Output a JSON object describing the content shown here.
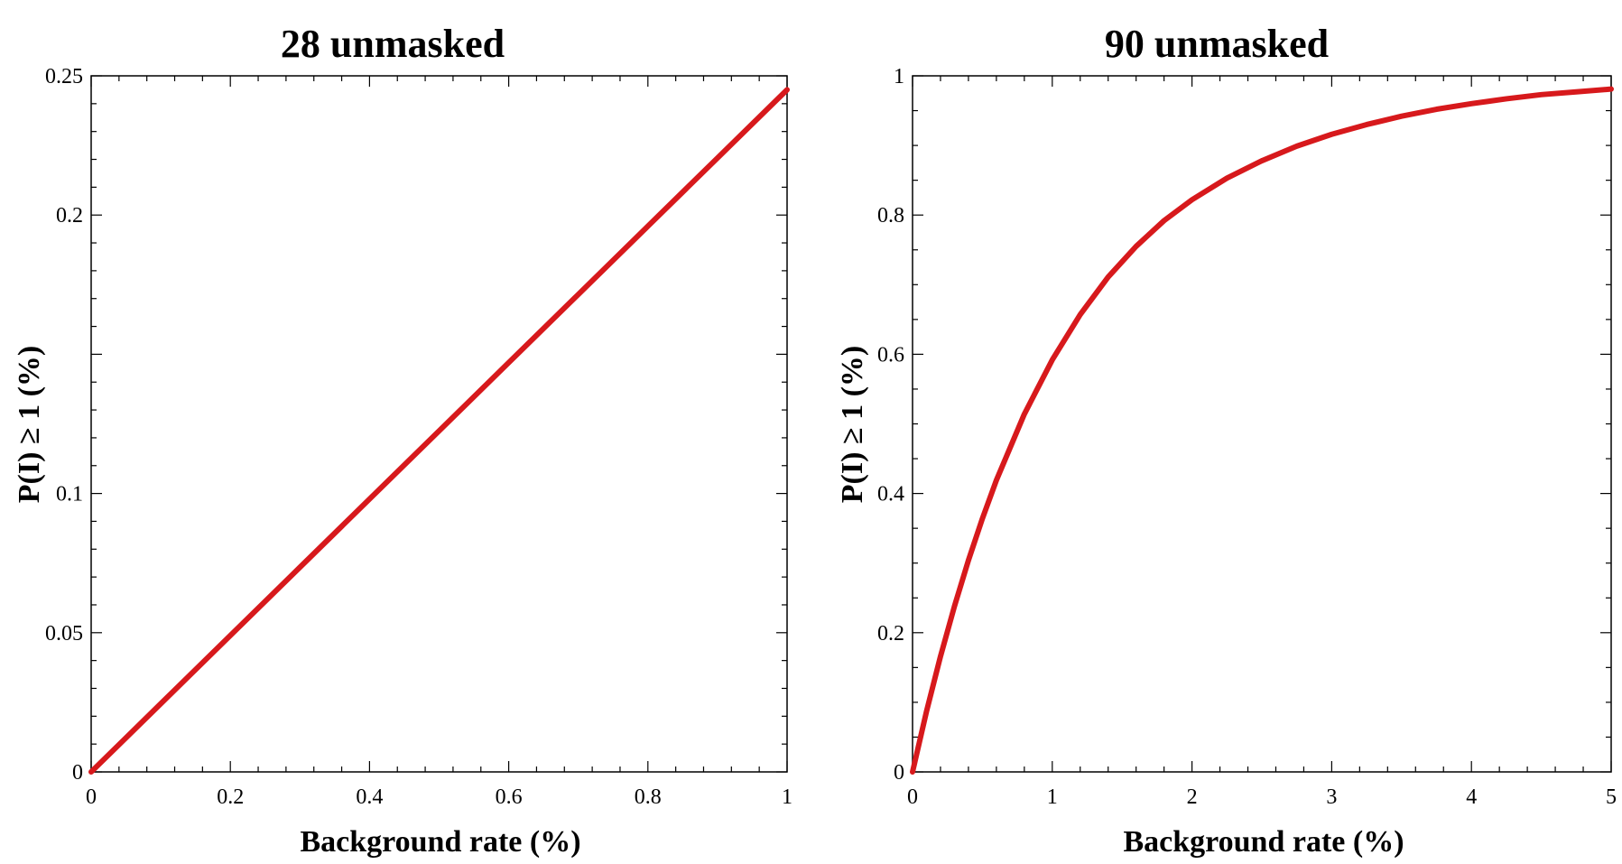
{
  "chart_data": [
    {
      "type": "line",
      "title": "28 unmasked",
      "xlabel": "Background rate (%)",
      "ylabel": "P(I) ≥ 1 (%)",
      "xlim": [
        0,
        1
      ],
      "ylim": [
        0,
        0.25
      ],
      "x_ticks": [
        0,
        0.2,
        0.4,
        0.6,
        0.8,
        1
      ],
      "x_tick_labels": [
        "0",
        "0.2",
        "0.4",
        "0.6",
        "0.8",
        "1"
      ],
      "y_ticks": [
        0,
        0.05,
        0.1,
        0.15,
        0.2,
        0.25
      ],
      "y_tick_labels": [
        "0",
        "0.05",
        "0.1",
        "",
        "0.2",
        "0.25"
      ],
      "grid": false,
      "line_color": "#d7191c",
      "series": [
        {
          "x": [
            0,
            0.1,
            0.2,
            0.3,
            0.4,
            0.5,
            0.6,
            0.7,
            0.8,
            0.9,
            1.0
          ],
          "values": [
            0,
            0.0245,
            0.049,
            0.0735,
            0.098,
            0.1225,
            0.147,
            0.1715,
            0.196,
            0.2205,
            0.245
          ]
        }
      ]
    },
    {
      "type": "line",
      "title": "90 unmasked",
      "xlabel": "Background rate (%)",
      "ylabel": "P(I) ≥ 1 (%)",
      "xlim": [
        0,
        5
      ],
      "ylim": [
        0,
        1
      ],
      "x_ticks": [
        0,
        1,
        2,
        3,
        4,
        5
      ],
      "x_tick_labels": [
        "0",
        "1",
        "2",
        "3",
        "4",
        "5"
      ],
      "y_ticks": [
        0,
        0.2,
        0.4,
        0.6,
        0.8,
        1
      ],
      "y_tick_labels": [
        "0",
        "0.2",
        "0.4",
        "0.6",
        "0.8",
        "1"
      ],
      "grid": false,
      "line_color": "#d7191c",
      "series": [
        {
          "x": [
            0,
            0.1,
            0.2,
            0.3,
            0.4,
            0.5,
            0.6,
            0.8,
            1.0,
            1.2,
            1.4,
            1.6,
            1.8,
            2.0,
            2.25,
            2.5,
            2.75,
            3.0,
            3.25,
            3.5,
            3.75,
            4.0,
            4.25,
            4.5,
            4.75,
            5.0
          ],
          "values": [
            0,
            0.087,
            0.166,
            0.238,
            0.304,
            0.364,
            0.419,
            0.514,
            0.592,
            0.657,
            0.711,
            0.755,
            0.792,
            0.822,
            0.853,
            0.878,
            0.899,
            0.916,
            0.93,
            0.942,
            0.952,
            0.96,
            0.967,
            0.973,
            0.977,
            0.981
          ]
        }
      ]
    }
  ]
}
